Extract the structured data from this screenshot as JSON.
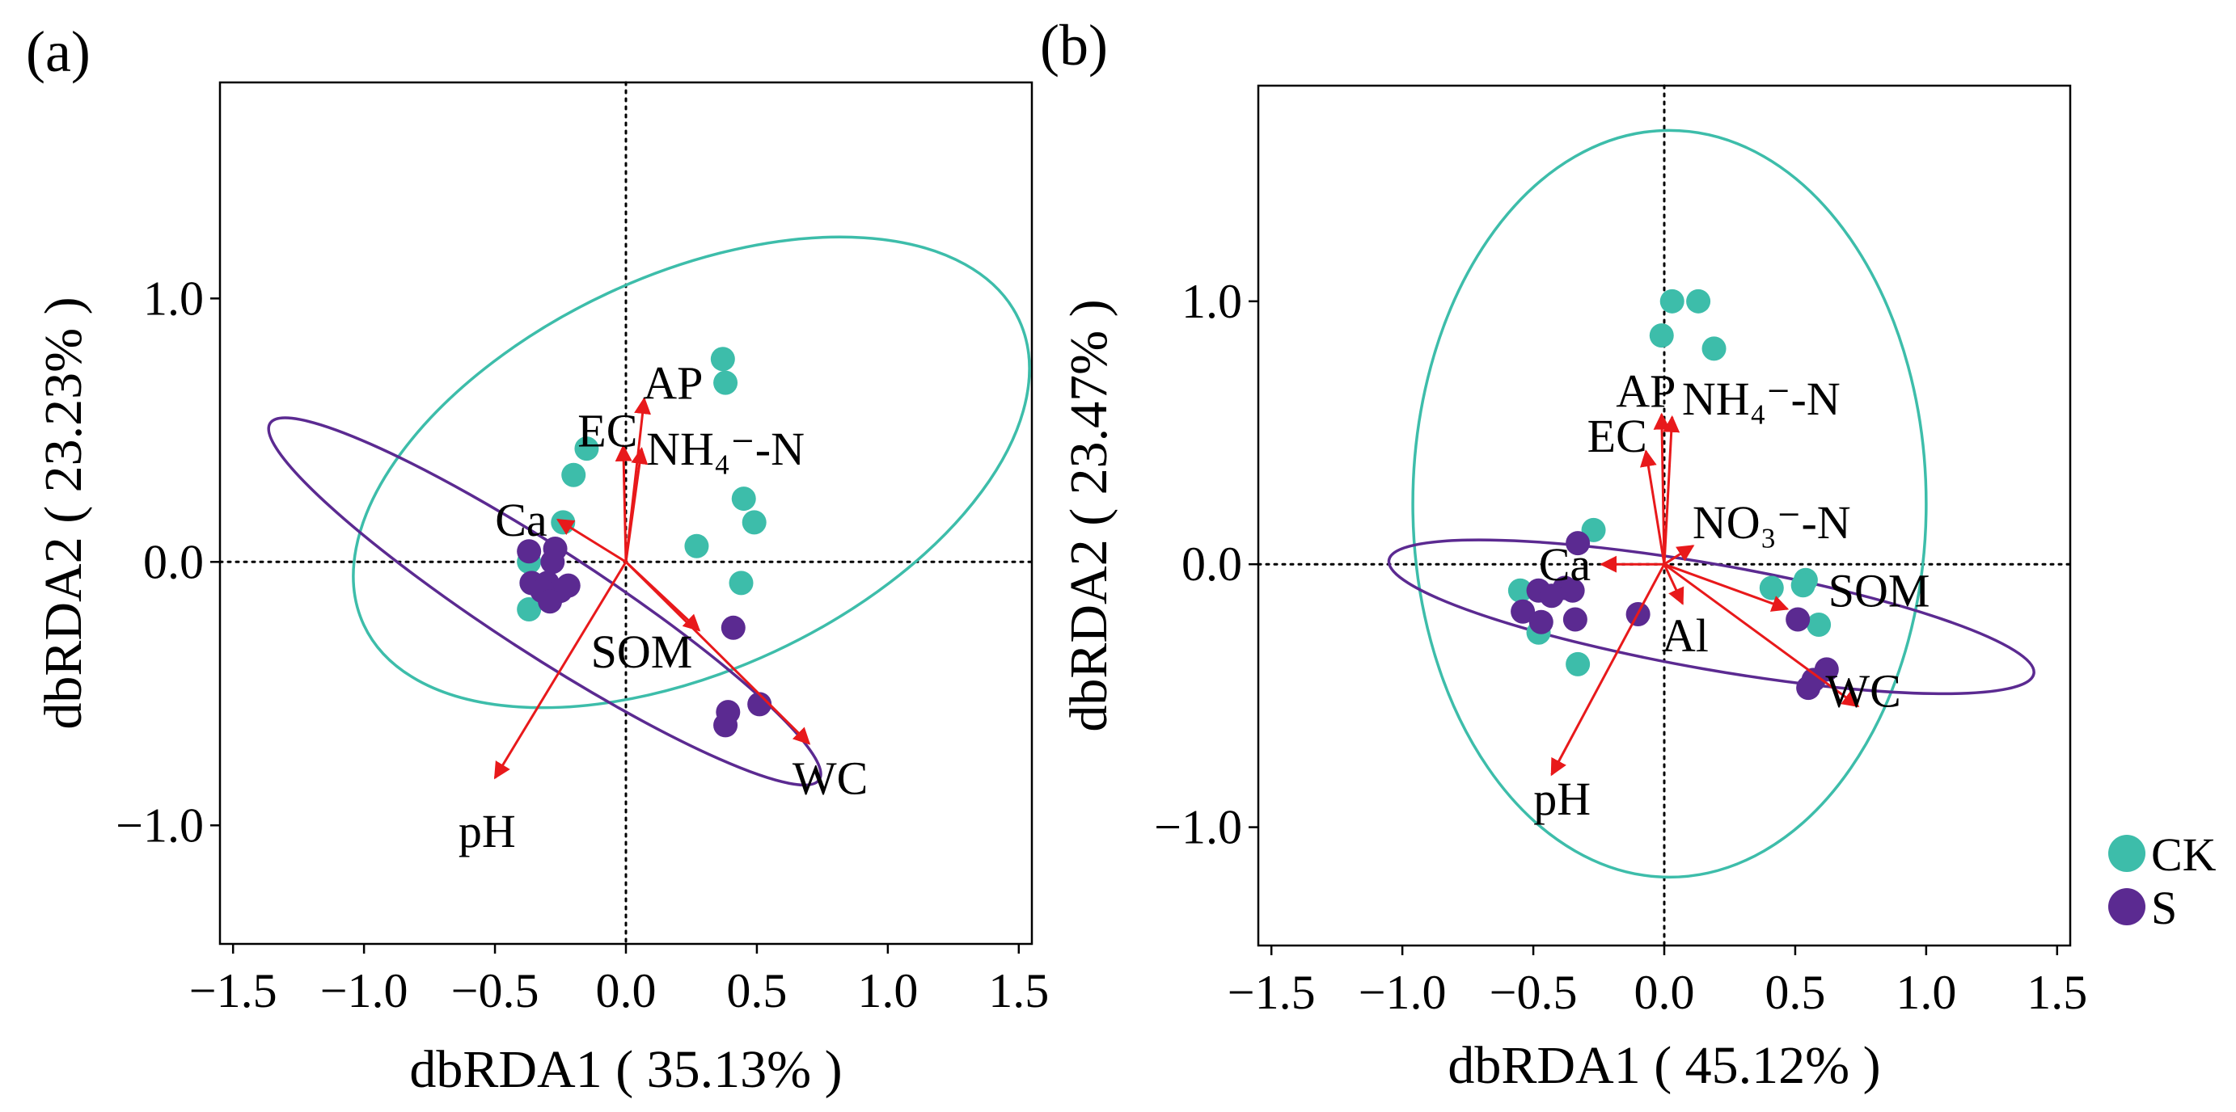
{
  "colors": {
    "CK": "#3dbdaa",
    "S": "#5b2a91",
    "arrow": "#e8191b",
    "axis": "#000000"
  },
  "legend": [
    {
      "group": "CK",
      "label": "CK"
    },
    {
      "group": "S",
      "label": "S"
    }
  ],
  "chart_data": [
    {
      "type": "scatter",
      "panel_label": "(a)",
      "xlabel": "dbRDA1 ( 35.13% )",
      "ylabel": "dbRDA2 ( 23.23% )",
      "xlim": [
        -1.55,
        1.55
      ],
      "ylim": [
        -1.45,
        1.82
      ],
      "xticks": [
        -1.5,
        -1.0,
        -0.5,
        0.0,
        0.5,
        1.0,
        1.5
      ],
      "xtick_labels": [
        "−1.5",
        "−1.0",
        "−0.5",
        "0.0",
        "0.5",
        "1.0",
        "1.5"
      ],
      "yticks": [
        -1.0,
        0.0,
        1.0
      ],
      "ytick_labels": [
        "−1.0",
        "0.0",
        "1.0"
      ],
      "series": [
        {
          "name": "CK",
          "x": [
            0.37,
            0.38,
            -0.15,
            -0.2,
            0.45,
            0.49,
            0.27,
            0.44,
            -0.24,
            -0.37,
            -0.36,
            -0.37
          ],
          "y": [
            0.77,
            0.68,
            0.43,
            0.33,
            0.24,
            0.15,
            0.06,
            -0.08,
            0.15,
            0.0,
            -0.08,
            -0.18
          ]
        },
        {
          "name": "S",
          "x": [
            -0.37,
            -0.27,
            -0.28,
            -0.36,
            -0.3,
            -0.25,
            -0.22,
            -0.32,
            -0.29,
            0.41,
            0.39,
            0.51,
            0.38
          ],
          "y": [
            0.04,
            0.05,
            0.0,
            -0.08,
            -0.08,
            -0.11,
            -0.09,
            -0.11,
            -0.15,
            -0.25,
            -0.57,
            -0.54,
            -0.62
          ]
        }
      ],
      "ellipses": [
        {
          "group": "CK",
          "cx": 0.25,
          "cy": 0.34,
          "rx": 1.38,
          "ry": 0.75,
          "angle_deg": 25
        },
        {
          "group": "S",
          "cx": -0.31,
          "cy": -0.15,
          "rx": 1.25,
          "ry": 0.2,
          "angle_deg": -33
        }
      ],
      "arrows": [
        {
          "label": "AP",
          "x": 0.07,
          "y": 0.62,
          "lx": 0.18,
          "ly": 0.68
        },
        {
          "label": "EC",
          "x": -0.01,
          "y": 0.44,
          "lx": -0.07,
          "ly": 0.5
        },
        {
          "label": "NH₄⁻-N",
          "x": 0.06,
          "y": 0.43,
          "lx": 0.38,
          "ly": 0.43
        },
        {
          "label": "Ca",
          "x": -0.26,
          "y": 0.16,
          "lx": -0.4,
          "ly": 0.16
        },
        {
          "label": "SOM",
          "x": 0.28,
          "y": -0.26,
          "lx": 0.06,
          "ly": -0.34
        },
        {
          "label": "WC",
          "x": 0.7,
          "y": -0.69,
          "lx": 0.78,
          "ly": -0.82
        },
        {
          "label": "pH",
          "x": -0.5,
          "y": -0.82,
          "lx": -0.53,
          "ly": -1.02
        }
      ]
    },
    {
      "type": "scatter",
      "panel_label": "(b)",
      "xlabel": "dbRDA1 ( 45.12% )",
      "ylabel": "dbRDA2 ( 23.47% )",
      "xlim": [
        -1.55,
        1.55
      ],
      "ylim": [
        -1.45,
        1.82
      ],
      "xticks": [
        -1.5,
        -1.0,
        -0.5,
        0.0,
        0.5,
        1.0,
        1.5
      ],
      "xtick_labels": [
        "−1.5",
        "−1.0",
        "−0.5",
        "0.0",
        "0.5",
        "1.0",
        "1.5"
      ],
      "yticks": [
        -1.0,
        0.0,
        1.0
      ],
      "ytick_labels": [
        "−1.0",
        "0.0",
        "1.0"
      ],
      "series": [
        {
          "name": "CK",
          "x": [
            0.03,
            0.13,
            -0.01,
            0.19,
            -0.27,
            -0.55,
            -0.48,
            -0.33,
            0.41,
            0.54,
            0.59,
            0.53
          ],
          "y": [
            1.0,
            1.0,
            0.87,
            0.82,
            0.13,
            -0.1,
            -0.26,
            -0.38,
            -0.09,
            -0.06,
            -0.23,
            -0.08
          ]
        },
        {
          "name": "S",
          "x": [
            -0.33,
            -0.38,
            -0.48,
            -0.54,
            -0.47,
            -0.43,
            -0.35,
            -0.34,
            -0.1,
            0.51,
            0.55,
            0.57,
            0.62
          ],
          "y": [
            0.08,
            -0.09,
            -0.1,
            -0.18,
            -0.22,
            -0.12,
            -0.1,
            -0.21,
            -0.19,
            -0.21,
            -0.47,
            -0.44,
            -0.4
          ]
        }
      ],
      "ellipses": [
        {
          "group": "CK",
          "cx": 0.02,
          "cy": 0.23,
          "rx": 0.98,
          "ry": 1.42,
          "angle_deg": 0
        },
        {
          "group": "S",
          "cx": 0.18,
          "cy": -0.2,
          "rx": 1.25,
          "ry": 0.2,
          "angle_deg": -10
        }
      ],
      "arrows": [
        {
          "label": "AP",
          "x": -0.01,
          "y": 0.57,
          "lx": -0.07,
          "ly": 0.66
        },
        {
          "label": "NH₄⁻-N",
          "x": 0.03,
          "y": 0.56,
          "lx": 0.37,
          "ly": 0.63
        },
        {
          "label": "EC",
          "x": -0.07,
          "y": 0.43,
          "lx": -0.18,
          "ly": 0.49
        },
        {
          "label": "NO₃⁻-N",
          "x": 0.11,
          "y": 0.07,
          "lx": 0.41,
          "ly": 0.16
        },
        {
          "label": "Ca",
          "x": -0.24,
          "y": 0.0,
          "lx": -0.38,
          "ly": 0.0
        },
        {
          "label": "Al",
          "x": 0.07,
          "y": -0.15,
          "lx": 0.08,
          "ly": -0.27
        },
        {
          "label": "SOM",
          "x": 0.47,
          "y": -0.17,
          "lx": 0.82,
          "ly": -0.1
        },
        {
          "label": "WC",
          "x": 0.74,
          "y": -0.54,
          "lx": 0.76,
          "ly": -0.48
        },
        {
          "label": "pH",
          "x": -0.43,
          "y": -0.8,
          "lx": -0.39,
          "ly": -0.89
        }
      ]
    }
  ]
}
